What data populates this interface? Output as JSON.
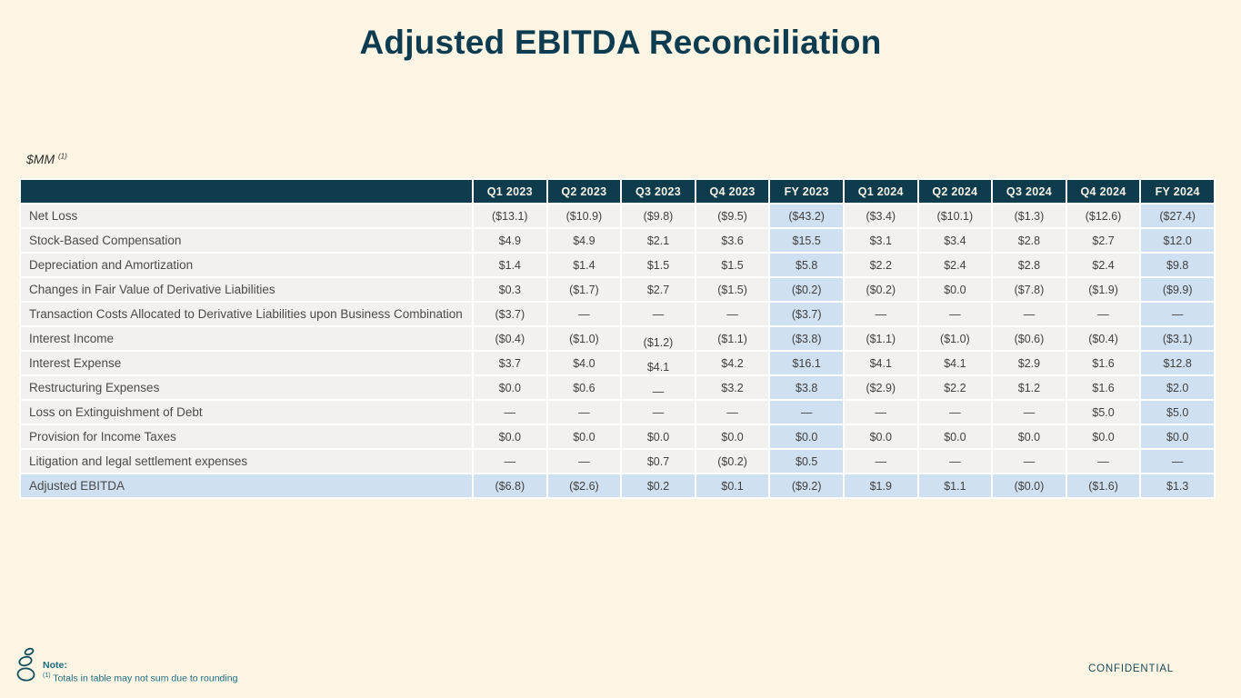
{
  "slide": {
    "title": "Adjusted EBITDA Reconciliation",
    "units_label": "$MM",
    "units_marker": "(1)",
    "note_label": "Note:",
    "note_marker": "(1)",
    "note_text": " Totals in table may not sum due to rounding",
    "confidential_label": "CONFIDENTIAL",
    "logo_icon": "stacked-stones-cairn-logo"
  },
  "colors": {
    "background": "#fcf5e4",
    "header_bg": "#0e3c4d",
    "header_text": "#f7f3e7",
    "row_bg": "#f3f1ef",
    "highlight_bg": "#cfe0f0",
    "title_text": "#0d3b50",
    "note_text": "#1e6a7e"
  },
  "table": {
    "columns": [
      {
        "label": "Q1 2023",
        "highlight": false
      },
      {
        "label": "Q2 2023",
        "highlight": false
      },
      {
        "label": "Q3 2023",
        "highlight": false
      },
      {
        "label": "Q4 2023",
        "highlight": false
      },
      {
        "label": "FY 2023",
        "highlight": true
      },
      {
        "label": "Q1 2024",
        "highlight": false
      },
      {
        "label": "Q2 2024",
        "highlight": false
      },
      {
        "label": "Q3 2024",
        "highlight": false
      },
      {
        "label": "Q4 2024",
        "highlight": false
      },
      {
        "label": "FY 2024",
        "highlight": true
      }
    ],
    "rows": [
      {
        "label": "Net Loss",
        "highlight_row": false,
        "values": [
          "($13.1)",
          "($10.9)",
          "($9.8)",
          "($9.5)",
          "($43.2)",
          "($3.4)",
          "($10.1)",
          "($1.3)",
          "($12.6)",
          "($27.4)"
        ]
      },
      {
        "label": "Stock-Based Compensation",
        "highlight_row": false,
        "values": [
          "$4.9",
          "$4.9",
          "$2.1",
          "$3.6",
          "$15.5",
          "$3.1",
          "$3.4",
          "$2.8",
          "$2.7",
          "$12.0"
        ]
      },
      {
        "label": "Depreciation and Amortization",
        "highlight_row": false,
        "values": [
          "$1.4",
          "$1.4",
          "$1.5",
          "$1.5",
          "$5.8",
          "$2.2",
          "$2.4",
          "$2.8",
          "$2.4",
          "$9.8"
        ]
      },
      {
        "label": "Changes in Fair Value of Derivative Liabilities",
        "highlight_row": false,
        "values": [
          "$0.3",
          "($1.7)",
          "$2.7",
          "($1.5)",
          "($0.2)",
          "($0.2)",
          "$0.0",
          "($7.8)",
          "($1.9)",
          "($9.9)"
        ]
      },
      {
        "label": "Transaction Costs Allocated to Derivative Liabilities upon Business Combination",
        "highlight_row": false,
        "values": [
          "($3.7)",
          "—",
          "—",
          "—",
          "($3.7)",
          "—",
          "—",
          "—",
          "—",
          "—"
        ]
      },
      {
        "label": "Interest Income",
        "highlight_row": false,
        "values": [
          "($0.4)",
          "($1.0)",
          "($1.2)",
          "($1.1)",
          "($3.8)",
          "($1.1)",
          "($1.0)",
          "($0.6)",
          "($0.4)",
          "($3.1)"
        ]
      },
      {
        "label": "Interest Expense",
        "highlight_row": false,
        "values": [
          "$3.7",
          "$4.0",
          "$4.1",
          "$4.2",
          "$16.1",
          "$4.1",
          "$4.1",
          "$2.9",
          "$1.6",
          "$12.8"
        ]
      },
      {
        "label": "Restructuring Expenses",
        "highlight_row": false,
        "values": [
          "$0.0",
          "$0.6",
          "—",
          "$3.2",
          "$3.8",
          "($2.9)",
          "$2.2",
          "$1.2",
          "$1.6",
          "$2.0"
        ]
      },
      {
        "label": "Loss on Extinguishment of Debt",
        "highlight_row": false,
        "values": [
          "—",
          "—",
          "—",
          "—",
          "—",
          "—",
          "—",
          "—",
          "$5.0",
          "$5.0"
        ]
      },
      {
        "label": "Provision for Income Taxes",
        "highlight_row": false,
        "values": [
          "$0.0",
          "$0.0",
          "$0.0",
          "$0.0",
          "$0.0",
          "$0.0",
          "$0.0",
          "$0.0",
          "$0.0",
          "$0.0"
        ]
      },
      {
        "label": "Litigation and legal settlement expenses",
        "highlight_row": false,
        "values": [
          "—",
          "—",
          "$0.7",
          "($0.2)",
          "$0.5",
          "—",
          "—",
          "—",
          "—",
          "—"
        ]
      },
      {
        "label": "Adjusted EBITDA",
        "highlight_row": true,
        "values": [
          "($6.8)",
          "($2.6)",
          "$0.2",
          "$0.1",
          "($9.2)",
          "$1.9",
          "$1.1",
          "($0.0)",
          "($1.6)",
          "$1.3"
        ]
      }
    ]
  }
}
